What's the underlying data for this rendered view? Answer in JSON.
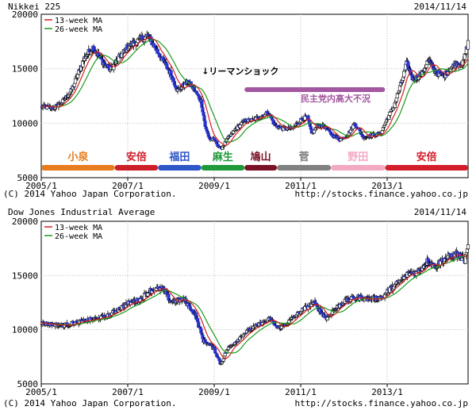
{
  "charts": [
    {
      "title": "Nikkei 225",
      "date": "2014/11/14",
      "legend": [
        "13-week MA",
        "26-week MA"
      ],
      "copyright": "(C) 2014 Yahoo Japan Corporation.",
      "source": "http://stocks.finance.yahoo.co.jp"
    },
    {
      "title": "Dow Jones Industrial Average",
      "date": "2014/11/14",
      "legend": [
        "13-week MA",
        "26-week MA"
      ],
      "copyright": "(C) 2014 Yahoo Japan Corporation.",
      "source": "http://stocks.finance.yahoo.co.jp"
    }
  ],
  "colors": {
    "up": "#ffffff",
    "down": "#2a35d6",
    "ma13": "#d42020",
    "ma26": "#1a9a1a",
    "grid": "#bbbbbb"
  },
  "chart_data": [
    {
      "type": "line",
      "title": "Nikkei 225",
      "ylim": [
        5000,
        20000
      ],
      "yticks": [
        5000,
        10000,
        15000,
        20000
      ],
      "xticks": [
        "2005/1",
        "2007/1",
        "2009/1",
        "2011/1",
        "2013/1"
      ],
      "candle_type": "weekly candlestick",
      "series": [
        {
          "name": "13-week MA",
          "color": "#d42020"
        },
        {
          "name": "26-week MA",
          "color": "#1a9a1a"
        }
      ],
      "close_path": [
        [
          2005.0,
          11500
        ],
        [
          2005.3,
          11400
        ],
        [
          2005.5,
          12000
        ],
        [
          2005.7,
          13000
        ],
        [
          2005.85,
          14500
        ],
        [
          2006.0,
          16000
        ],
        [
          2006.2,
          17000
        ],
        [
          2006.35,
          16000
        ],
        [
          2006.5,
          15300
        ],
        [
          2006.6,
          14900
        ],
        [
          2006.8,
          16000
        ],
        [
          2007.0,
          17000
        ],
        [
          2007.2,
          17500
        ],
        [
          2007.45,
          18000
        ],
        [
          2007.55,
          17500
        ],
        [
          2007.7,
          16500
        ],
        [
          2007.85,
          15500
        ],
        [
          2008.0,
          14500
        ],
        [
          2008.15,
          13000
        ],
        [
          2008.4,
          13800
        ],
        [
          2008.55,
          13000
        ],
        [
          2008.7,
          12000
        ],
        [
          2008.8,
          9500
        ],
        [
          2008.9,
          8500
        ],
        [
          2009.0,
          8500
        ],
        [
          2009.15,
          7600
        ],
        [
          2009.3,
          8500
        ],
        [
          2009.5,
          9500
        ],
        [
          2009.7,
          10200
        ],
        [
          2009.9,
          10300
        ],
        [
          2010.1,
          10700
        ],
        [
          2010.25,
          11000
        ],
        [
          2010.4,
          9800
        ],
        [
          2010.6,
          9500
        ],
        [
          2010.8,
          9500
        ],
        [
          2011.0,
          10300
        ],
        [
          2011.15,
          10600
        ],
        [
          2011.25,
          9000
        ],
        [
          2011.4,
          9800
        ],
        [
          2011.55,
          9700
        ],
        [
          2011.7,
          9000
        ],
        [
          2011.9,
          8500
        ],
        [
          2012.1,
          9000
        ],
        [
          2012.25,
          10000
        ],
        [
          2012.45,
          8700
        ],
        [
          2012.65,
          8900
        ],
        [
          2012.85,
          9000
        ],
        [
          2012.95,
          10000
        ],
        [
          2013.15,
          11500
        ],
        [
          2013.35,
          14000
        ],
        [
          2013.45,
          15500
        ],
        [
          2013.6,
          14000
        ],
        [
          2013.8,
          14500
        ],
        [
          2013.95,
          15800
        ],
        [
          2014.1,
          14800
        ],
        [
          2014.3,
          14300
        ],
        [
          2014.45,
          15000
        ],
        [
          2014.6,
          15500
        ],
        [
          2014.75,
          15400
        ],
        [
          2014.87,
          17400
        ]
      ],
      "annotations": [
        {
          "text": "↓リーマンショック",
          "x": 2008.71,
          "y": 14500
        },
        {
          "text": "民主党内高大不況",
          "x": 2011.0,
          "y": 12000
        }
      ],
      "eras": [
        {
          "name": "小泉",
          "from": 2005.0,
          "to": 2006.7,
          "color": "#e87c1e"
        },
        {
          "name": "安倍",
          "from": 2006.7,
          "to": 2007.7,
          "color": "#cc1f2a"
        },
        {
          "name": "福田",
          "from": 2007.7,
          "to": 2008.7,
          "color": "#2f56c6"
        },
        {
          "name": "麻生",
          "from": 2008.7,
          "to": 2009.7,
          "color": "#1f9a3a"
        },
        {
          "name": "鳩山",
          "from": 2009.7,
          "to": 2010.45,
          "color": "#7a1226"
        },
        {
          "name": "菅",
          "from": 2010.45,
          "to": 2011.7,
          "color": "#808080"
        },
        {
          "name": "野田",
          "from": 2011.7,
          "to": 2012.95,
          "color": "#f3a9c4"
        },
        {
          "name": "安倍",
          "from": 2012.95,
          "to": 2014.87,
          "color": "#d41e2a"
        }
      ],
      "period_bar": {
        "from": 2009.7,
        "to": 2012.95,
        "color": "#a357a0"
      }
    },
    {
      "type": "line",
      "title": "Dow Jones Industrial Average",
      "ylim": [
        5000,
        20000
      ],
      "yticks": [
        5000,
        10000,
        15000,
        20000
      ],
      "xticks": [
        "2005/1",
        "2007/1",
        "2009/1",
        "2011/1",
        "2013/1"
      ],
      "candle_type": "weekly candlestick",
      "series": [
        {
          "name": "13-week MA",
          "color": "#d42020"
        },
        {
          "name": "26-week MA",
          "color": "#1a9a1a"
        }
      ],
      "close_path": [
        [
          2005.0,
          10600
        ],
        [
          2005.5,
          10400
        ],
        [
          2006.0,
          10800
        ],
        [
          2006.5,
          11200
        ],
        [
          2007.0,
          12400
        ],
        [
          2007.3,
          12800
        ],
        [
          2007.5,
          13600
        ],
        [
          2007.8,
          13800
        ],
        [
          2008.0,
          12600
        ],
        [
          2008.3,
          12800
        ],
        [
          2008.55,
          11500
        ],
        [
          2008.75,
          9000
        ],
        [
          2008.9,
          8600
        ],
        [
          2009.0,
          8200
        ],
        [
          2009.15,
          6800
        ],
        [
          2009.3,
          8200
        ],
        [
          2009.5,
          8900
        ],
        [
          2009.7,
          9700
        ],
        [
          2010.0,
          10400
        ],
        [
          2010.3,
          11000
        ],
        [
          2010.45,
          10200
        ],
        [
          2010.6,
          10300
        ],
        [
          2011.0,
          11700
        ],
        [
          2011.3,
          12500
        ],
        [
          2011.6,
          11000
        ],
        [
          2011.75,
          11800
        ],
        [
          2012.0,
          12600
        ],
        [
          2012.3,
          13000
        ],
        [
          2012.6,
          12800
        ],
        [
          2012.9,
          13000
        ],
        [
          2013.0,
          13500
        ],
        [
          2013.3,
          14500
        ],
        [
          2013.5,
          15200
        ],
        [
          2013.7,
          15300
        ],
        [
          2013.95,
          16400
        ],
        [
          2014.1,
          15800
        ],
        [
          2014.3,
          16500
        ],
        [
          2014.6,
          17000
        ],
        [
          2014.8,
          16400
        ],
        [
          2014.87,
          17600
        ]
      ]
    }
  ]
}
